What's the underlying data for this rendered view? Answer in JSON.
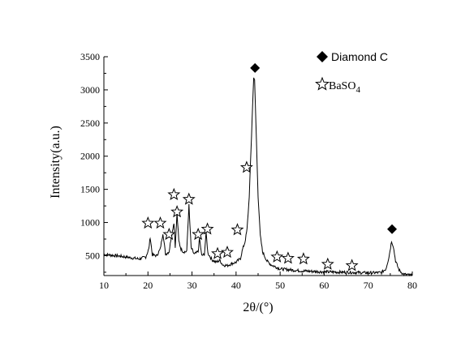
{
  "chart_data": {
    "type": "line",
    "xlabel": "2θ/(°)",
    "ylabel": "Intensity(a.u.)",
    "xlim": [
      10,
      80
    ],
    "ylim": [
      200,
      3500
    ],
    "xticks": [
      10,
      20,
      30,
      40,
      50,
      60,
      70,
      80
    ],
    "yticks": [
      500,
      1000,
      1500,
      2000,
      2500,
      3000,
      3500
    ],
    "grid": false,
    "legend_position": "top-right",
    "legend": [
      {
        "marker": "filled-diamond",
        "label": "Diamond C"
      },
      {
        "marker": "open-star",
        "label": "BaSO",
        "subscript": "4"
      }
    ],
    "series": [
      {
        "x": [
          10,
          12,
          14,
          16,
          18,
          19.5,
          20.2,
          20.5,
          21,
          22,
          22.8,
          23.4,
          24,
          24.8,
          25.2,
          25.9,
          26.2,
          26.6,
          27,
          27.5,
          28,
          28.8,
          29.3,
          29.8,
          30.5,
          31.4,
          31.7,
          32.2,
          32.8,
          33.2,
          33.6,
          34.5,
          35.5,
          36.3,
          37,
          38,
          39,
          40,
          41,
          41.5,
          42,
          42.5,
          43,
          43.5,
          44,
          44.2,
          44.5,
          45,
          45.5,
          46,
          47,
          48,
          50,
          55,
          60,
          65,
          70,
          73,
          74,
          74.7,
          75.3,
          75.7,
          76.2,
          77,
          78,
          80
        ],
        "y": [
          520,
          505,
          490,
          470,
          450,
          480,
          600,
          780,
          510,
          500,
          600,
          840,
          520,
          560,
          740,
          1000,
          640,
          1140,
          720,
          600,
          560,
          560,
          1260,
          620,
          520,
          560,
          760,
          500,
          520,
          840,
          540,
          440,
          400,
          430,
          360,
          350,
          380,
          400,
          460,
          600,
          700,
          900,
          1400,
          2300,
          3200,
          3140,
          2500,
          1400,
          800,
          560,
          420,
          360,
          300,
          270,
          255,
          250,
          240,
          245,
          300,
          480,
          720,
          640,
          420,
          280,
          220,
          200
        ]
      }
    ],
    "markers": [
      {
        "type": "open-star",
        "x": 20,
        "y": 990
      },
      {
        "type": "open-star",
        "x": 22.8,
        "y": 990
      },
      {
        "type": "open-star",
        "x": 24.8,
        "y": 820
      },
      {
        "type": "open-star",
        "x": 25.9,
        "y": 1420
      },
      {
        "type": "open-star",
        "x": 26.6,
        "y": 1160
      },
      {
        "type": "open-star",
        "x": 29.3,
        "y": 1350
      },
      {
        "type": "open-star",
        "x": 31.4,
        "y": 820
      },
      {
        "type": "open-star",
        "x": 33.5,
        "y": 900
      },
      {
        "type": "open-star",
        "x": 35.8,
        "y": 530
      },
      {
        "type": "open-star",
        "x": 38,
        "y": 550
      },
      {
        "type": "open-star",
        "x": 40.3,
        "y": 890
      },
      {
        "type": "open-star",
        "x": 42.4,
        "y": 1830
      },
      {
        "type": "open-star",
        "x": 49.3,
        "y": 480
      },
      {
        "type": "open-star",
        "x": 51.8,
        "y": 460
      },
      {
        "type": "open-star",
        "x": 55.3,
        "y": 450
      },
      {
        "type": "open-star",
        "x": 60.8,
        "y": 370
      },
      {
        "type": "open-star",
        "x": 66.3,
        "y": 350
      },
      {
        "type": "filled-diamond",
        "x": 44.3,
        "y": 3330
      },
      {
        "type": "filled-diamond",
        "x": 75.4,
        "y": 900
      }
    ]
  }
}
